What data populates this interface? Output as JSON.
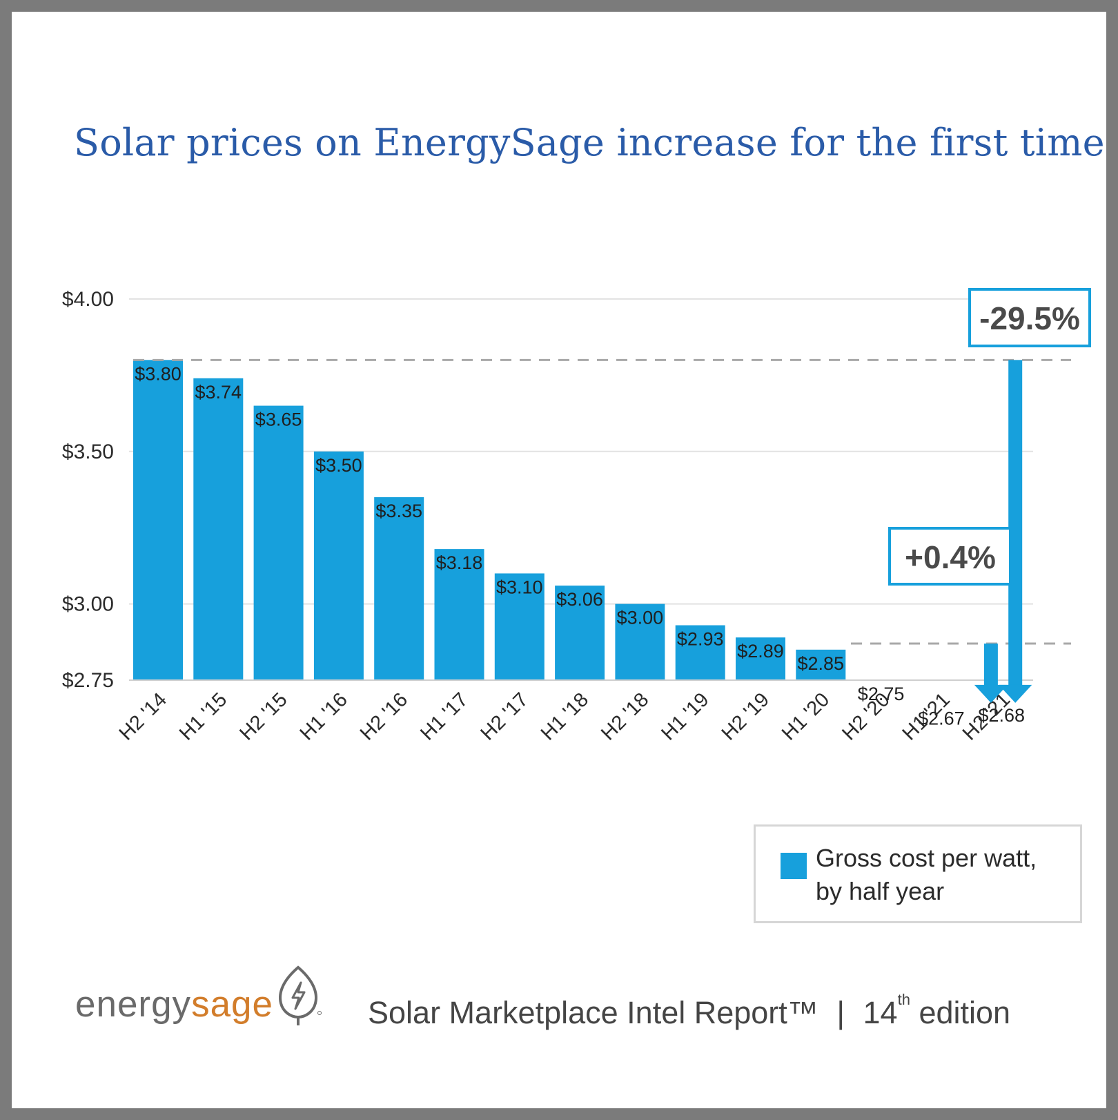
{
  "title": "Solar prices on EnergySage increase for the first time",
  "chart_data": {
    "type": "bar",
    "title": "Solar prices on EnergySage increase for the first time",
    "categories": [
      "H2 '14",
      "H1 '15",
      "H2 '15",
      "H1 '16",
      "H2 '16",
      "H1 '17",
      "H2 '17",
      "H1 '18",
      "H2 '18",
      "H1 '19",
      "H2 '19",
      "H1 '20",
      "H2 '20",
      "H1 '21",
      "H2 '21"
    ],
    "values": [
      3.8,
      3.74,
      3.65,
      3.5,
      3.35,
      3.18,
      3.1,
      3.06,
      3.0,
      2.93,
      2.89,
      2.85,
      2.75,
      2.67,
      2.68
    ],
    "data_labels": [
      "$3.80",
      "$3.74",
      "$3.65",
      "$3.50",
      "$3.35",
      "$3.18",
      "$3.10",
      "$3.06",
      "$3.00",
      "$2.93",
      "$2.89",
      "$2.85",
      "$2.75",
      "$2.67",
      "$2.68"
    ],
    "ylim": [
      2.75,
      4.0
    ],
    "yticks": [
      2.75,
      3.0,
      3.5,
      4.0
    ],
    "ytick_labels": [
      "$2.75",
      "$3.00",
      "$3.50",
      "$4.00"
    ],
    "xlabel": "",
    "ylabel": "",
    "grid": true,
    "series_color": "#17a0dc",
    "annotations": [
      {
        "label": "-29.5%",
        "reference_value": 3.8,
        "from": "H2 '14",
        "to": "H2 '21"
      },
      {
        "label": "+0.4%",
        "reference_value": 2.87,
        "from": "H1 '21",
        "to": "H2 '21"
      }
    ],
    "legend": {
      "label_line1": "Gross cost per watt,",
      "label_line2": "by half year",
      "position": "bottom-right"
    }
  },
  "footer": {
    "brand_part1": "energy",
    "brand_part2": "sage",
    "report_name": "Solar Marketplace Intel Report™",
    "separator": "|",
    "edition_number": "14",
    "edition_suffix": "th",
    "edition_word": "edition"
  },
  "colors": {
    "title": "#2a5ba8",
    "bar": "#17a0dc",
    "annotation_border": "#17a0dc",
    "brand_gray": "#6a6a6a",
    "brand_orange": "#d27d2b"
  }
}
